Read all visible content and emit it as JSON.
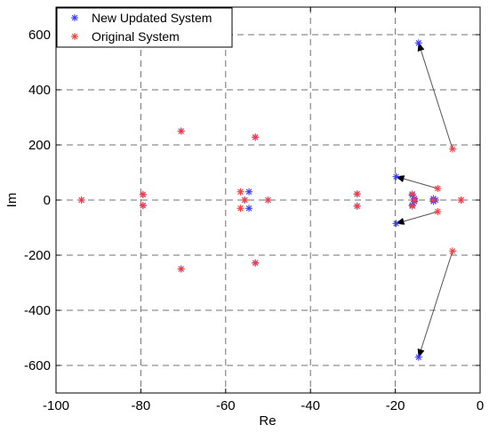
{
  "chart_data": {
    "type": "scatter",
    "title": "",
    "xlabel": "Re",
    "ylabel": "Im",
    "xlim": [
      -100,
      0
    ],
    "ylim": [
      -700,
      700
    ],
    "xticks": [
      -100,
      -80,
      -60,
      -40,
      -20,
      0
    ],
    "yticks": [
      -600,
      -400,
      -200,
      0,
      200,
      400,
      600
    ],
    "xtick_labels": [
      "-100",
      "-80",
      "-60",
      "-40",
      "-20",
      "0"
    ],
    "ytick_labels": [
      "-600",
      "-400",
      "-200",
      "0",
      "200",
      "400",
      "600"
    ],
    "grid": "dashed",
    "legend_position": "top-left",
    "marker": "asterisk",
    "series": [
      {
        "name": "New Updated System",
        "color": "#3b3bff",
        "points": [
          [
            -94,
            0
          ],
          [
            -79.5,
            20
          ],
          [
            -79.5,
            -20
          ],
          [
            -70.5,
            250
          ],
          [
            -70.5,
            -250
          ],
          [
            -54.5,
            30
          ],
          [
            -54.5,
            -30
          ],
          [
            -55.5,
            0
          ],
          [
            -53,
            228
          ],
          [
            -53,
            -228
          ],
          [
            -50,
            0
          ],
          [
            -29,
            22
          ],
          [
            -29,
            -22
          ],
          [
            -19.8,
            85
          ],
          [
            -19.8,
            -85
          ],
          [
            -16,
            18
          ],
          [
            -16,
            -18
          ],
          [
            -15.5,
            5
          ],
          [
            -15.5,
            -5
          ],
          [
            -14.5,
            570
          ],
          [
            -14.5,
            -570
          ],
          [
            -11,
            5
          ],
          [
            -11,
            -5
          ],
          [
            -10.5,
            0
          ],
          [
            -4.5,
            0
          ]
        ]
      },
      {
        "name": "Original System",
        "color": "#ff3b3b",
        "points": [
          [
            -94,
            0
          ],
          [
            -79.5,
            20
          ],
          [
            -79.5,
            -20
          ],
          [
            -70.5,
            250
          ],
          [
            -70.5,
            -250
          ],
          [
            -56.5,
            30
          ],
          [
            -56.5,
            -30
          ],
          [
            -55.5,
            0
          ],
          [
            -53,
            228
          ],
          [
            -53,
            -228
          ],
          [
            -50,
            0
          ],
          [
            -29,
            22
          ],
          [
            -29,
            -22
          ],
          [
            -16,
            22
          ],
          [
            -16,
            -22
          ],
          [
            -15.5,
            0
          ],
          [
            -11,
            0
          ],
          [
            -10,
            42
          ],
          [
            -10,
            -42
          ],
          [
            -6.5,
            185
          ],
          [
            -6.5,
            -185
          ],
          [
            -4.5,
            0
          ]
        ]
      }
    ],
    "arrows": [
      {
        "from": [
          -6.5,
          185
        ],
        "to": [
          -14.5,
          570
        ]
      },
      {
        "from": [
          -6.5,
          -185
        ],
        "to": [
          -14.5,
          -570
        ]
      },
      {
        "from": [
          -10,
          42
        ],
        "to": [
          -19.8,
          85
        ]
      },
      {
        "from": [
          -10,
          -42
        ],
        "to": [
          -19.8,
          -85
        ]
      }
    ]
  }
}
